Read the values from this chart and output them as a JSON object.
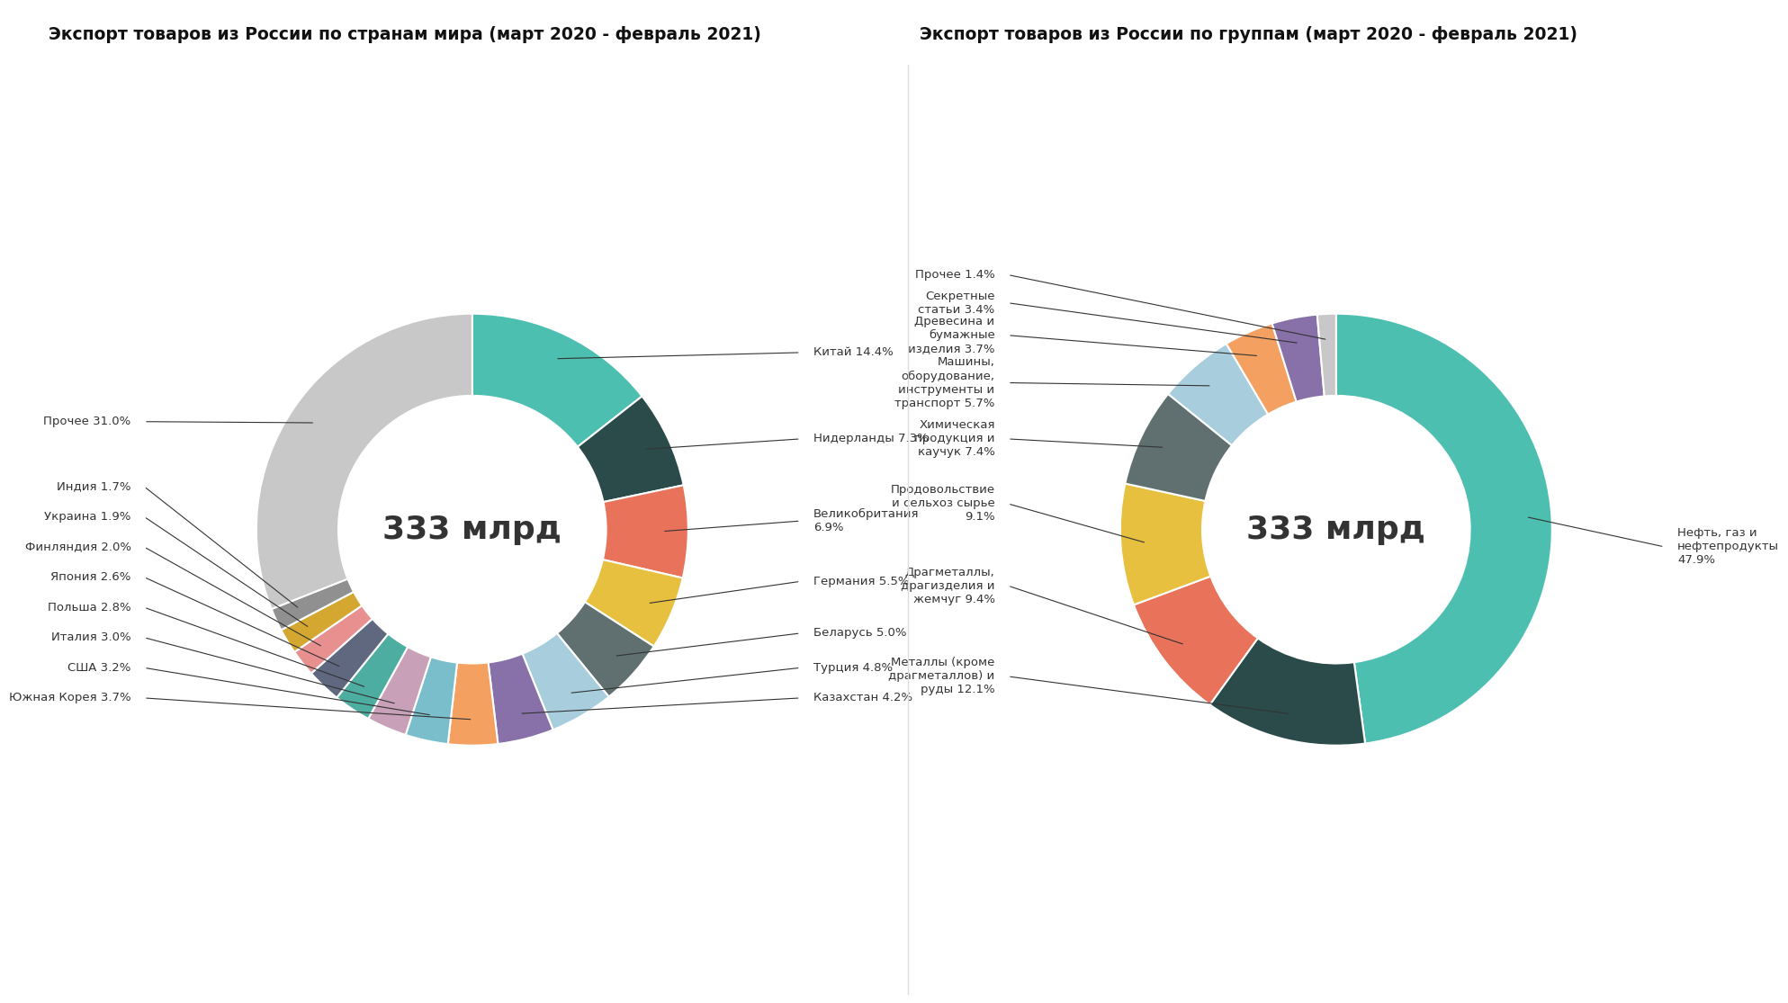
{
  "title1": "Экспорт товаров из России по странам мира (март 2020 - февраль 2021)",
  "title2": "Экспорт товаров из России по группам (март 2020 - февраль 2021)",
  "center_text": "333 млрд",
  "bg_color": "#FFFFFF",
  "title_bg_color": "#F5C518",
  "chart1": {
    "values": [
      14.4,
      7.3,
      6.9,
      5.5,
      5.0,
      4.8,
      4.2,
      3.7,
      3.2,
      3.0,
      2.8,
      2.6,
      2.0,
      1.9,
      1.7,
      31.0
    ],
    "colors": [
      "#4DBFB0",
      "#2B4A4A",
      "#E8735A",
      "#E8C040",
      "#607070",
      "#A8CEDE",
      "#8870A8",
      "#F4A060",
      "#7ABECC",
      "#C8A0B8",
      "#4DADA0",
      "#606880",
      "#E89090",
      "#D4A830",
      "#909090",
      "#C8C8C8"
    ],
    "right_labels": [
      [
        0,
        "Китай 14.4%",
        0.82
      ],
      [
        1,
        "Нидерланды 7.3%",
        0.42
      ],
      [
        2,
        "Великобритания\n6.9%",
        0.04
      ],
      [
        3,
        "Германия 5.5%",
        -0.24
      ],
      [
        4,
        "Беларусь 5.0%",
        -0.48
      ],
      [
        5,
        "Турция 4.8%",
        -0.64
      ],
      [
        6,
        "Казахстан 4.2%",
        -0.78
      ]
    ],
    "left_labels": [
      [
        7,
        "Южная Корея 3.7%",
        -0.78
      ],
      [
        8,
        "США 3.2%",
        -0.64
      ],
      [
        9,
        "Италия 3.0%",
        -0.5
      ],
      [
        10,
        "Польша 2.8%",
        -0.36
      ],
      [
        11,
        "Япония 2.6%",
        -0.22
      ],
      [
        12,
        "Финляндия 2.0%",
        -0.08
      ],
      [
        13,
        "Украина 1.9%",
        0.06
      ],
      [
        14,
        "Индия 1.7%",
        0.2
      ],
      [
        15,
        "Прочее 31.0%",
        0.5
      ]
    ]
  },
  "chart2": {
    "values": [
      47.9,
      12.1,
      9.4,
      9.1,
      7.4,
      5.7,
      3.7,
      3.4,
      1.4
    ],
    "colors": [
      "#4DBFB0",
      "#2B4A4A",
      "#E8735A",
      "#E8C040",
      "#607070",
      "#A8CEDE",
      "#F4A060",
      "#8870A8",
      "#C8C8C8"
    ],
    "right_labels": [
      [
        0,
        "Нефть, газ и\nнефтепродукты\n47.9%",
        -0.08
      ]
    ],
    "left_labels": [
      [
        1,
        "Металлы (кроме\nдрагметаллов) и\nруды 12.1%",
        -0.68
      ],
      [
        2,
        "Драгметаллы,\nдрагизделия и\nжемчуг 9.4%",
        -0.26
      ],
      [
        3,
        "Продовольствие\nи сельхоз сырье\n9.1%",
        0.12
      ],
      [
        4,
        "Химическая\nпродукция и\nкаучук 7.4%",
        0.42
      ],
      [
        5,
        "Машины,\nоборудование,\nинструменты и\nтранспорт 5.7%",
        0.68
      ],
      [
        6,
        "Древесина и\nбумажные\nизделия 3.7%",
        0.9
      ],
      [
        7,
        "Секретные\nстатьи 3.4%",
        1.05
      ],
      [
        8,
        "Прочее 1.4%",
        1.18
      ]
    ]
  }
}
